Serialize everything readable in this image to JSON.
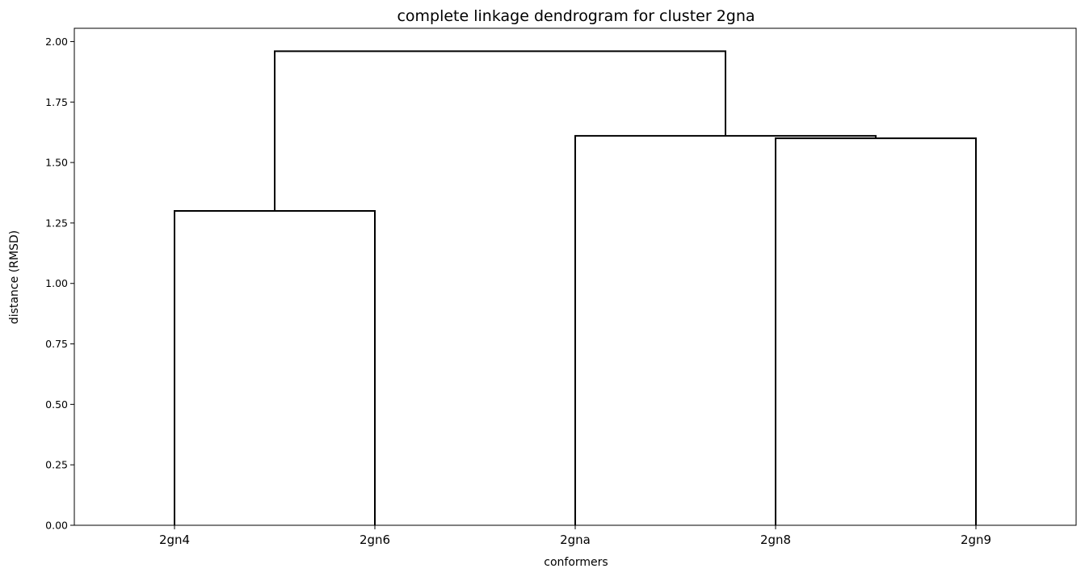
{
  "chart_data": {
    "type": "dendrogram",
    "title": "complete linkage dendrogram for cluster 2gna",
    "xlabel": "conformers",
    "ylabel": "distance (RMSD)",
    "leaves": [
      "2gn4",
      "2gn6",
      "2gna",
      "2gn8",
      "2gn9"
    ],
    "yticks": [
      "0.00",
      "0.25",
      "0.50",
      "0.75",
      "1.00",
      "1.25",
      "1.50",
      "1.75",
      "2.00"
    ],
    "ylim": [
      0,
      2.055
    ],
    "links": [
      {
        "left": "2gn4",
        "right": "2gn6",
        "height": 1.3
      },
      {
        "left": "2gn8",
        "right": "2gn9",
        "height": 1.6
      },
      {
        "left": "2gna",
        "right": "(2gn8, 2gn9)",
        "height": 1.61
      },
      {
        "left": "(2gn4, 2gn6)",
        "right": "(2gna, 2gn8, 2gn9)",
        "height": 1.96
      }
    ],
    "line_color": "#000000",
    "grid": false,
    "legend": "none"
  }
}
